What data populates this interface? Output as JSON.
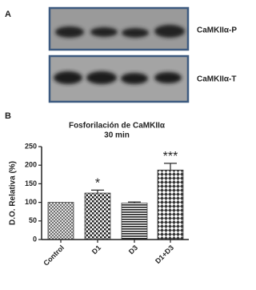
{
  "panel_labels": [
    "A",
    "B"
  ],
  "blot_labels": [
    "CaMKIIα-P",
    "CaMKIIα-T"
  ],
  "chart_data": {
    "type": "bar",
    "title": "Fosforilación de CaMKIIα",
    "subtitle": "30 min",
    "y_label": "D.O. Relativa (%)",
    "categories": [
      "Control",
      "D1",
      "D3",
      "D1+D3"
    ],
    "values": [
      100,
      125,
      98,
      187
    ],
    "errors": [
      0,
      8,
      3,
      18
    ],
    "annotations": [
      null,
      "*",
      null,
      "***"
    ],
    "ylim": [
      0,
      250
    ],
    "yticks": [
      0,
      50,
      100,
      150,
      200,
      250
    ]
  }
}
